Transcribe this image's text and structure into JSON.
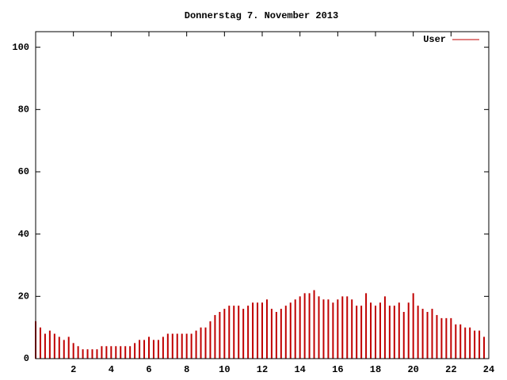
{
  "chart_data": {
    "type": "impulse",
    "title": "Donnerstag 7. November 2013",
    "x": [
      0,
      0.25,
      0.5,
      0.75,
      1,
      1.25,
      1.5,
      1.75,
      2,
      2.25,
      2.5,
      2.75,
      3,
      3.25,
      3.5,
      3.75,
      4,
      4.25,
      4.5,
      4.75,
      5,
      5.25,
      5.5,
      5.75,
      6,
      6.25,
      6.5,
      6.75,
      7,
      7.25,
      7.5,
      7.75,
      8,
      8.25,
      8.5,
      8.75,
      9,
      9.25,
      9.5,
      9.75,
      10,
      10.25,
      10.5,
      10.75,
      11,
      11.25,
      11.5,
      11.75,
      12,
      12.25,
      12.5,
      12.75,
      13,
      13.25,
      13.5,
      13.75,
      14,
      14.25,
      14.5,
      14.75,
      15,
      15.25,
      15.5,
      15.75,
      16,
      16.25,
      16.5,
      16.75,
      17,
      17.25,
      17.5,
      17.75,
      18,
      18.25,
      18.5,
      18.75,
      19,
      19.25,
      19.5,
      19.75,
      20,
      20.25,
      20.5,
      20.75,
      21,
      21.25,
      21.5,
      21.75,
      22,
      22.25,
      22.5,
      22.75,
      23,
      23.25,
      23.5,
      23.75
    ],
    "series": [
      {
        "name": "User",
        "color": "#c00000",
        "values": [
          12,
          10,
          8,
          9,
          8,
          7,
          6,
          7,
          5,
          4,
          3,
          3,
          3,
          3,
          4,
          4,
          4,
          4,
          4,
          4,
          4,
          5,
          6,
          6,
          7,
          6,
          6,
          7,
          8,
          8,
          8,
          8,
          8,
          8,
          9,
          10,
          10,
          12,
          14,
          15,
          16,
          17,
          17,
          17,
          16,
          17,
          18,
          18,
          18,
          19,
          16,
          15,
          16,
          17,
          18,
          19,
          20,
          21,
          21,
          22,
          20,
          19,
          19,
          18,
          19,
          20,
          20,
          19,
          17,
          17,
          21,
          18,
          17,
          18,
          20,
          17,
          17,
          18,
          15,
          18,
          21,
          17,
          16,
          15,
          16,
          14,
          13,
          13,
          13,
          11,
          11,
          10,
          10,
          9,
          9,
          7
        ]
      }
    ],
    "xlim": [
      0,
      24
    ],
    "ylim": [
      0,
      105
    ],
    "xticks": [
      2,
      4,
      6,
      8,
      10,
      12,
      14,
      16,
      18,
      20,
      22,
      24
    ],
    "yticks": [
      0,
      20,
      40,
      60,
      80,
      100
    ],
    "legend": "top-right",
    "grid": false
  }
}
